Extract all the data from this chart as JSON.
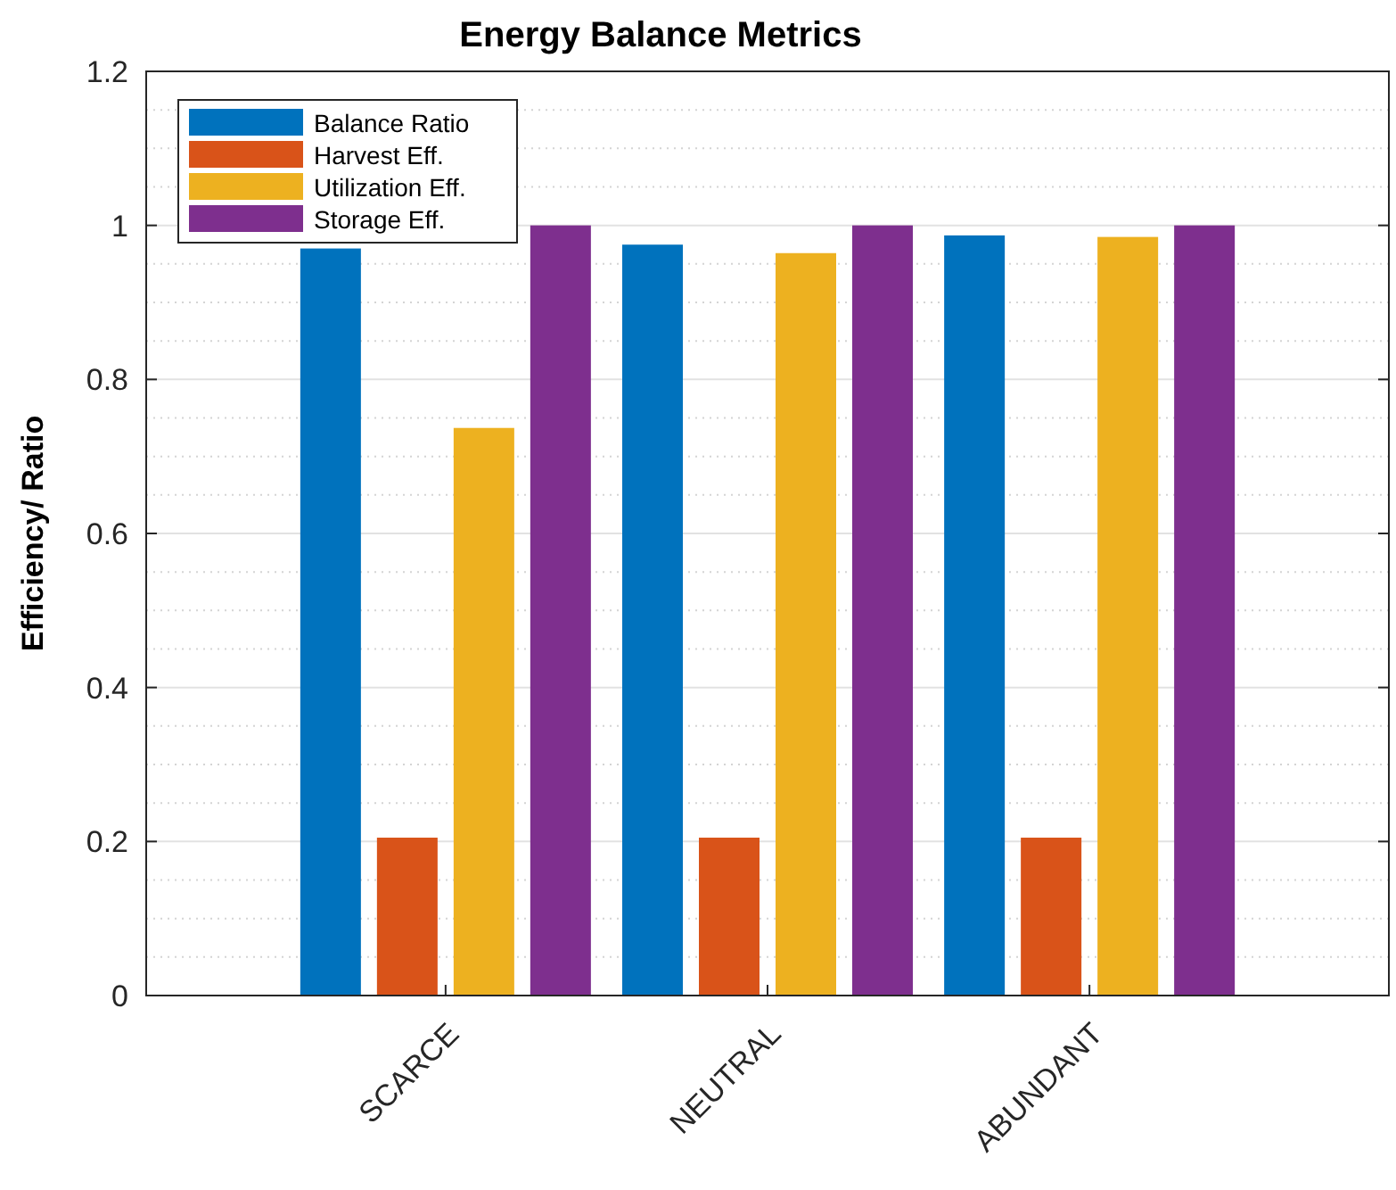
{
  "chart_data": {
    "type": "bar",
    "title": "Energy Balance Metrics",
    "ylabel": "Efficiency/ Ratio",
    "categories": [
      "SCARCE",
      "NEUTRAL",
      "ABUNDANT"
    ],
    "series": [
      {
        "name": "Balance Ratio",
        "color": "#0072bd",
        "values": [
          0.97,
          0.975,
          0.987
        ]
      },
      {
        "name": "Harvest Eff.",
        "color": "#d95319",
        "values": [
          0.205,
          0.205,
          0.205
        ]
      },
      {
        "name": "Utilization Eff.",
        "color": "#edb120",
        "values": [
          0.737,
          0.964,
          0.985
        ]
      },
      {
        "name": "Storage Eff.",
        "color": "#7e2f8e",
        "values": [
          1.0,
          1.0,
          1.0
        ]
      }
    ],
    "ylim": [
      0,
      1.2
    ],
    "yticks": [
      0,
      0.2,
      0.4,
      0.6,
      0.8,
      1,
      1.2
    ],
    "grid": true,
    "legend": "top left"
  }
}
